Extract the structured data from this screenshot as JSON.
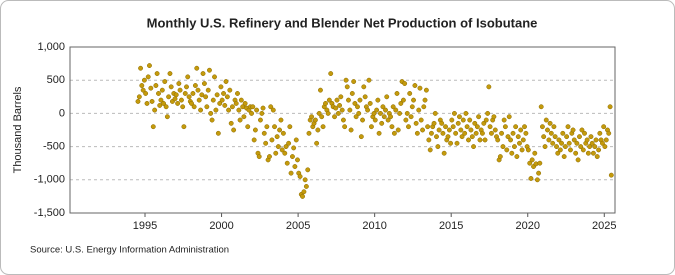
{
  "chart_data": {
    "type": "scatter",
    "title": "Monthly U.S. Refinery and Blender Net Production of Isobutane",
    "y_label": "Thousand Barrels",
    "source": "Source: U.S. Energy Information Administration",
    "color": "#c49a0c",
    "grid": true,
    "xlim": [
      1990.1,
      2025.7
    ],
    "xticks": [
      1995,
      2000,
      2005,
      2010,
      2015,
      2020,
      2025
    ],
    "ylim": [
      -1500,
      1000
    ],
    "yticks": [
      {
        "value": -1500,
        "label": "-1,500"
      },
      {
        "value": -1000,
        "label": "-1,000"
      },
      -500,
      0,
      500,
      {
        "value": 1000,
        "label": "1,000"
      }
    ],
    "x": [
      1994.54,
      1994.63,
      1994.71,
      1994.79,
      1994.88,
      1994.96,
      1995.04,
      1995.13,
      1995.21,
      1995.29,
      1995.38,
      1995.46,
      1995.54,
      1995.63,
      1995.71,
      1995.79,
      1995.88,
      1995.96,
      1996.04,
      1996.13,
      1996.21,
      1996.29,
      1996.38,
      1996.46,
      1996.54,
      1996.63,
      1996.71,
      1996.79,
      1996.88,
      1996.96,
      1997.04,
      1997.13,
      1997.21,
      1997.29,
      1997.38,
      1997.46,
      1997.54,
      1997.63,
      1997.71,
      1997.79,
      1997.88,
      1997.96,
      1998.04,
      1998.13,
      1998.21,
      1998.29,
      1998.38,
      1998.46,
      1998.54,
      1998.63,
      1998.71,
      1998.79,
      1998.88,
      1998.96,
      1999.04,
      1999.13,
      1999.21,
      1999.29,
      1999.38,
      1999.46,
      1999.54,
      1999.63,
      1999.71,
      1999.79,
      1999.88,
      1999.96,
      2000.04,
      2000.13,
      2000.21,
      2000.29,
      2000.38,
      2000.46,
      2000.54,
      2000.63,
      2000.71,
      2000.79,
      2000.88,
      2000.96,
      2001.04,
      2001.13,
      2001.21,
      2001.29,
      2001.38,
      2001.46,
      2001.54,
      2001.63,
      2001.71,
      2001.79,
      2001.88,
      2001.96,
      2002.04,
      2002.13,
      2002.21,
      2002.29,
      2002.38,
      2002.46,
      2002.54,
      2002.63,
      2002.71,
      2002.79,
      2002.88,
      2002.96,
      2003.04,
      2003.13,
      2003.21,
      2003.29,
      2003.38,
      2003.46,
      2003.54,
      2003.63,
      2003.71,
      2003.79,
      2003.88,
      2003.96,
      2004.04,
      2004.13,
      2004.21,
      2004.29,
      2004.38,
      2004.46,
      2004.54,
      2004.63,
      2004.71,
      2004.79,
      2004.88,
      2004.96,
      2005.04,
      2005.13,
      2005.21,
      2005.29,
      2005.38,
      2005.46,
      2005.54,
      2005.63,
      2005.71,
      2005.79,
      2005.88,
      2005.96,
      2006.04,
      2006.13,
      2006.21,
      2006.29,
      2006.38,
      2006.46,
      2006.54,
      2006.63,
      2006.71,
      2006.79,
      2006.88,
      2006.96,
      2007.04,
      2007.13,
      2007.21,
      2007.29,
      2007.38,
      2007.46,
      2007.54,
      2007.63,
      2007.71,
      2007.79,
      2007.88,
      2007.96,
      2008.04,
      2008.13,
      2008.21,
      2008.29,
      2008.38,
      2008.46,
      2008.54,
      2008.63,
      2008.71,
      2008.79,
      2008.88,
      2008.96,
      2009.04,
      2009.13,
      2009.21,
      2009.29,
      2009.38,
      2009.46,
      2009.54,
      2009.63,
      2009.71,
      2009.79,
      2009.88,
      2009.96,
      2010.04,
      2010.13,
      2010.21,
      2010.29,
      2010.38,
      2010.46,
      2010.54,
      2010.63,
      2010.71,
      2010.79,
      2010.88,
      2010.96,
      2011.04,
      2011.13,
      2011.21,
      2011.29,
      2011.38,
      2011.46,
      2011.54,
      2011.63,
      2011.71,
      2011.79,
      2011.88,
      2011.96,
      2012.04,
      2012.13,
      2012.21,
      2012.29,
      2012.38,
      2012.46,
      2012.54,
      2012.63,
      2012.71,
      2012.79,
      2012.88,
      2012.96,
      2013.04,
      2013.13,
      2013.21,
      2013.29,
      2013.38,
      2013.46,
      2013.54,
      2013.63,
      2013.71,
      2013.79,
      2013.88,
      2013.96,
      2014.04,
      2014.13,
      2014.21,
      2014.29,
      2014.38,
      2014.46,
      2014.54,
      2014.63,
      2014.71,
      2014.79,
      2014.88,
      2014.96,
      2015.04,
      2015.13,
      2015.21,
      2015.29,
      2015.38,
      2015.46,
      2015.54,
      2015.63,
      2015.71,
      2015.79,
      2015.88,
      2015.96,
      2016.04,
      2016.13,
      2016.21,
      2016.29,
      2016.38,
      2016.46,
      2016.54,
      2016.63,
      2016.71,
      2016.79,
      2016.88,
      2016.96,
      2017.04,
      2017.13,
      2017.21,
      2017.29,
      2017.38,
      2017.46,
      2017.54,
      2017.63,
      2017.71,
      2017.79,
      2017.88,
      2017.96,
      2018.04,
      2018.13,
      2018.21,
      2018.29,
      2018.38,
      2018.46,
      2018.54,
      2018.63,
      2018.71,
      2018.79,
      2018.88,
      2018.96,
      2019.04,
      2019.13,
      2019.21,
      2019.29,
      2019.38,
      2019.46,
      2019.54,
      2019.63,
      2019.71,
      2019.79,
      2019.88,
      2019.96,
      2020.04,
      2020.13,
      2020.21,
      2020.29,
      2020.38,
      2020.46,
      2020.54,
      2020.63,
      2020.71,
      2020.79,
      2020.88,
      2020.96,
      2021.04,
      2021.13,
      2021.21,
      2021.29,
      2021.38,
      2021.46,
      2021.54,
      2021.63,
      2021.71,
      2021.79,
      2021.88,
      2021.96,
      2022.04,
      2022.13,
      2022.21,
      2022.29,
      2022.38,
      2022.46,
      2022.54,
      2022.63,
      2022.71,
      2022.79,
      2022.88,
      2022.96,
      2023.04,
      2023.13,
      2023.21,
      2023.29,
      2023.38,
      2023.46,
      2023.54,
      2023.63,
      2023.71,
      2023.79,
      2023.88,
      2023.96,
      2024.04,
      2024.13,
      2024.21,
      2024.29,
      2024.38,
      2024.46,
      2024.54,
      2024.63,
      2024.71,
      2024.79,
      2024.88,
      2024.96,
      2025.04,
      2025.13,
      2025.21,
      2025.29,
      2025.38,
      2025.46
    ],
    "values": [
      180,
      250,
      680,
      420,
      350,
      500,
      300,
      150,
      550,
      720,
      380,
      180,
      -200,
      50,
      420,
      600,
      300,
      120,
      200,
      350,
      150,
      480,
      100,
      -50,
      250,
      600,
      400,
      180,
      300,
      220,
      280,
      150,
      450,
      350,
      200,
      100,
      -200,
      300,
      400,
      550,
      250,
      180,
      150,
      300,
      100,
      420,
      680,
      350,
      200,
      50,
      280,
      600,
      450,
      250,
      100,
      350,
      650,
      0,
      -100,
      200,
      550,
      50,
      280,
      -300,
      150,
      400,
      200,
      300,
      120,
      480,
      250,
      50,
      350,
      -150,
      100,
      -250,
      200,
      150,
      300,
      50,
      -100,
      200,
      100,
      -50,
      150,
      80,
      -200,
      50,
      100,
      0,
      100,
      -400,
      -250,
      50,
      -600,
      -650,
      -100,
      0,
      80,
      -300,
      -450,
      -200,
      -700,
      -650,
      100,
      -400,
      50,
      -200,
      -600,
      -350,
      -500,
      -250,
      -100,
      -550,
      -300,
      -600,
      -500,
      -750,
      -450,
      -200,
      -900,
      -650,
      -520,
      -800,
      -400,
      -700,
      -900,
      -950,
      -1220,
      -1250,
      -1180,
      -1000,
      -1100,
      -850,
      -300,
      -100,
      -50,
      -200,
      -150,
      -100,
      -450,
      -250,
      0,
      350,
      -50,
      -200,
      100,
      150,
      50,
      0,
      200,
      600,
      150,
      100,
      -50,
      80,
      200,
      0,
      120,
      250,
      50,
      -100,
      -200,
      500,
      400,
      200,
      50,
      -250,
      300,
      480,
      150,
      -50,
      100,
      0,
      200,
      -350,
      -100,
      400,
      250,
      100,
      50,
      500,
      150,
      -200,
      -50,
      0,
      -100,
      50,
      200,
      -300,
      0,
      -150,
      100,
      -50,
      50,
      250,
      -100,
      0,
      -50,
      -200,
      100,
      -300,
      50,
      300,
      -250,
      0,
      150,
      480,
      200,
      450,
      -100,
      0,
      -200,
      300,
      -50,
      100,
      200,
      420,
      -150,
      -300,
      50,
      380,
      -100,
      -250,
      100,
      200,
      350,
      -200,
      -400,
      -550,
      -300,
      -200,
      -150,
      0,
      -350,
      -500,
      -250,
      -100,
      -150,
      -300,
      -600,
      -200,
      -400,
      -350,
      -250,
      -450,
      -100,
      -200,
      0,
      -300,
      -450,
      -150,
      -50,
      -250,
      -350,
      -100,
      -300,
      0,
      -200,
      -400,
      -100,
      -250,
      -350,
      -500,
      -150,
      -300,
      -200,
      -50,
      -400,
      -250,
      -300,
      -150,
      -400,
      -100,
      0,
      400,
      -200,
      -300,
      -100,
      -50,
      -250,
      -350,
      -400,
      -700,
      -650,
      -300,
      -500,
      -100,
      -200,
      -550,
      -350,
      -50,
      -400,
      -600,
      -300,
      -500,
      -200,
      -650,
      -350,
      -450,
      -250,
      -550,
      -400,
      -200,
      -300,
      -500,
      -550,
      -750,
      -980,
      -700,
      -800,
      -600,
      -760,
      -1000,
      -900,
      -750,
      100,
      -200,
      -350,
      -500,
      -100,
      -250,
      -400,
      -150,
      -300,
      -450,
      -200,
      -350,
      -500,
      -600,
      -400,
      -550,
      -450,
      -300,
      -650,
      -500,
      -350,
      -200,
      -450,
      -550,
      -300,
      -250,
      -400,
      -600,
      -450,
      -700,
      -350,
      -500,
      -250,
      -550,
      -300,
      -450,
      -400,
      -600,
      -500,
      -350,
      -450,
      -600,
      -500,
      -400,
      -650,
      -550,
      -300,
      -400,
      -450,
      -200,
      -500,
      -400,
      -250,
      -300,
      100,
      -930
    ]
  }
}
